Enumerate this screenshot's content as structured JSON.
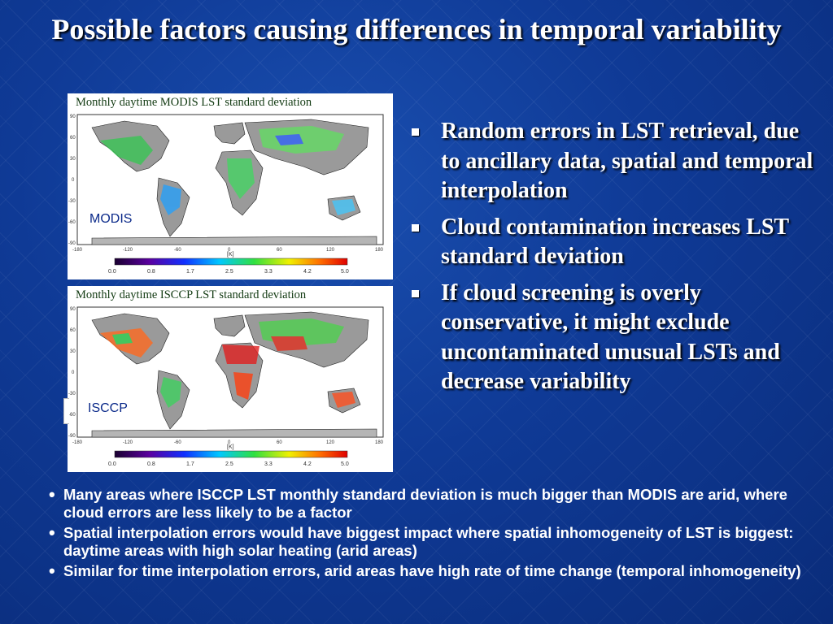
{
  "title": "Possible factors causing differences in temporal variability",
  "panels": [
    {
      "caption": "Monthly daytime MODIS LST standard deviation",
      "tag": "MODIS",
      "lat_ticks": [
        "90",
        "60",
        "30",
        "0",
        "-30",
        "-60",
        "-90"
      ],
      "lon_ticks": [
        "-180",
        "-120",
        "-60",
        "0",
        "60",
        "120",
        "180"
      ],
      "unit": "[K]",
      "scale_ticks": [
        "0.0",
        "0.8",
        "1.7",
        "2.5",
        "3.3",
        "4.2",
        "5.0"
      ]
    },
    {
      "caption": "Monthly daytime ISCCP LST standard deviation",
      "tag": "ISCCP",
      "lat_ticks": [
        "90",
        "60",
        "30",
        "0",
        "-30",
        "-60",
        "-90"
      ],
      "lon_ticks": [
        "-180",
        "-120",
        "-60",
        "0",
        "60",
        "120",
        "180"
      ],
      "unit": "[K]",
      "scale_ticks": [
        "0.0",
        "0.8",
        "1.7",
        "2.5",
        "3.3",
        "4.2",
        "5.0"
      ]
    }
  ],
  "right_bullets": [
    "Random errors in LST retrieval, due to ancillary data, spatial and temporal interpolation",
    "Cloud contamination increases LST standard deviation",
    "If cloud screening is overly conservative, it might exclude uncontaminated unusual LSTs and decrease variability"
  ],
  "bottom_bullets": [
    "Many areas where ISCCP LST monthly standard deviation is much bigger than MODIS are arid, where cloud errors are less likely to be a factor",
    "Spatial interpolation errors would have biggest impact where spatial inhomogeneity of LST is biggest: daytime areas with high solar heating (arid areas)",
    "Similar for time interpolation errors, arid areas have high rate of time change (temporal inhomogeneity)"
  ],
  "colors": {
    "background": "#0f3a96",
    "text": "#ffffff",
    "caption_text": "#123a12",
    "tag_text": "#0b2a8a"
  }
}
